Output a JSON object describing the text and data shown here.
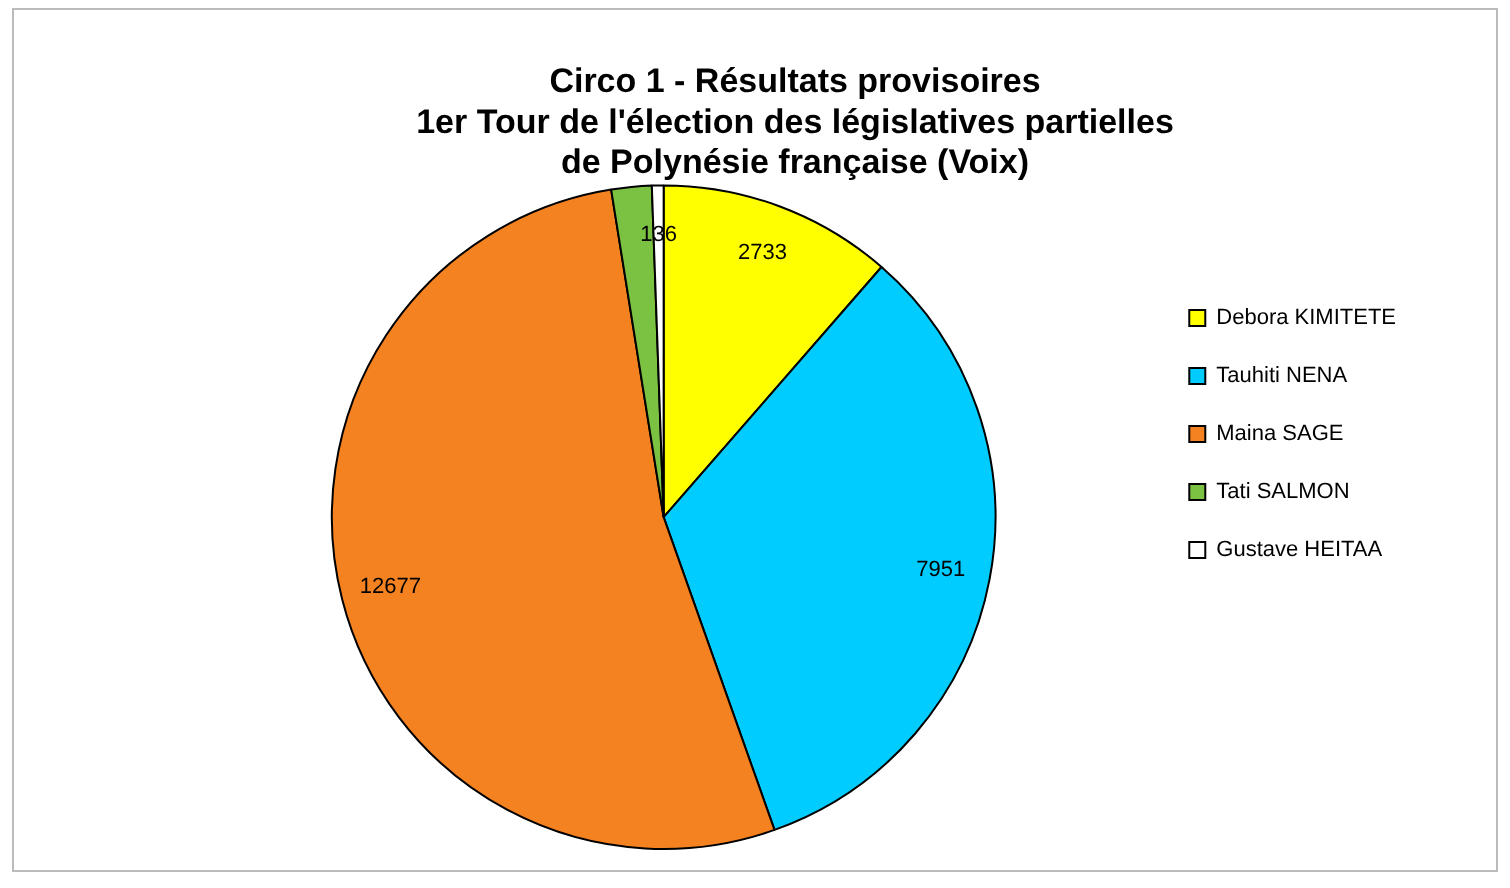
{
  "chart_data": {
    "type": "pie",
    "title": "Circo 1 - Résultats provisoires\n1er Tour de l'élection des législatives partielles\nde Polynésie française (Voix)",
    "categories": [
      "Debora KIMITETE",
      "Tauhiti NENA",
      "Maina SAGE",
      "Tati SALMON",
      "Gustave HEITAA"
    ],
    "values": [
      2733,
      7951,
      12677,
      470,
      136
    ],
    "colors": [
      "#ffff00",
      "#00ccff",
      "#f58220",
      "#7cc242",
      "#ffffff"
    ],
    "value_labels": [
      "2733",
      "7951",
      "12677",
      null,
      "136"
    ],
    "legend": "right"
  }
}
